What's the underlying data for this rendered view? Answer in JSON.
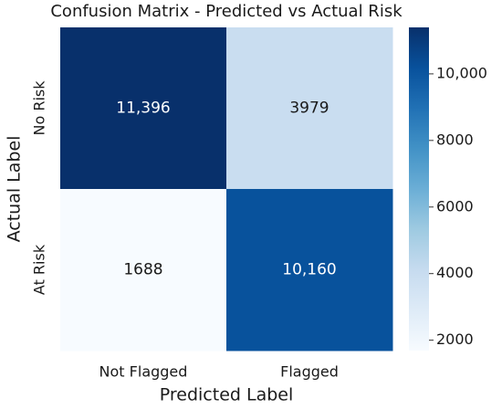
{
  "chart_data": {
    "type": "heatmap",
    "title": "Confusion Matrix - Predicted vs Actual Risk",
    "xlabel": "Predicted Label",
    "ylabel": "Actual Label",
    "x_categories": [
      "Not Flagged",
      "Flagged"
    ],
    "y_categories": [
      "No Risk",
      "At Risk"
    ],
    "values": [
      [
        11396,
        3979
      ],
      [
        1688,
        10160
      ]
    ],
    "value_labels": [
      [
        "11,396",
        "3979"
      ],
      [
        "1688",
        "10,160"
      ]
    ],
    "clim": [
      1688,
      11396
    ],
    "colorbar_ticks": [
      2000,
      4000,
      6000,
      8000,
      {
        "value": 10000,
        "label": "10,000"
      }
    ],
    "colormap": [
      "#f7fbff",
      "#deebf7",
      "#c6dbef",
      "#9ecae1",
      "#6baed6",
      "#4292c6",
      "#2171b5",
      "#08519c",
      "#08306b"
    ]
  }
}
